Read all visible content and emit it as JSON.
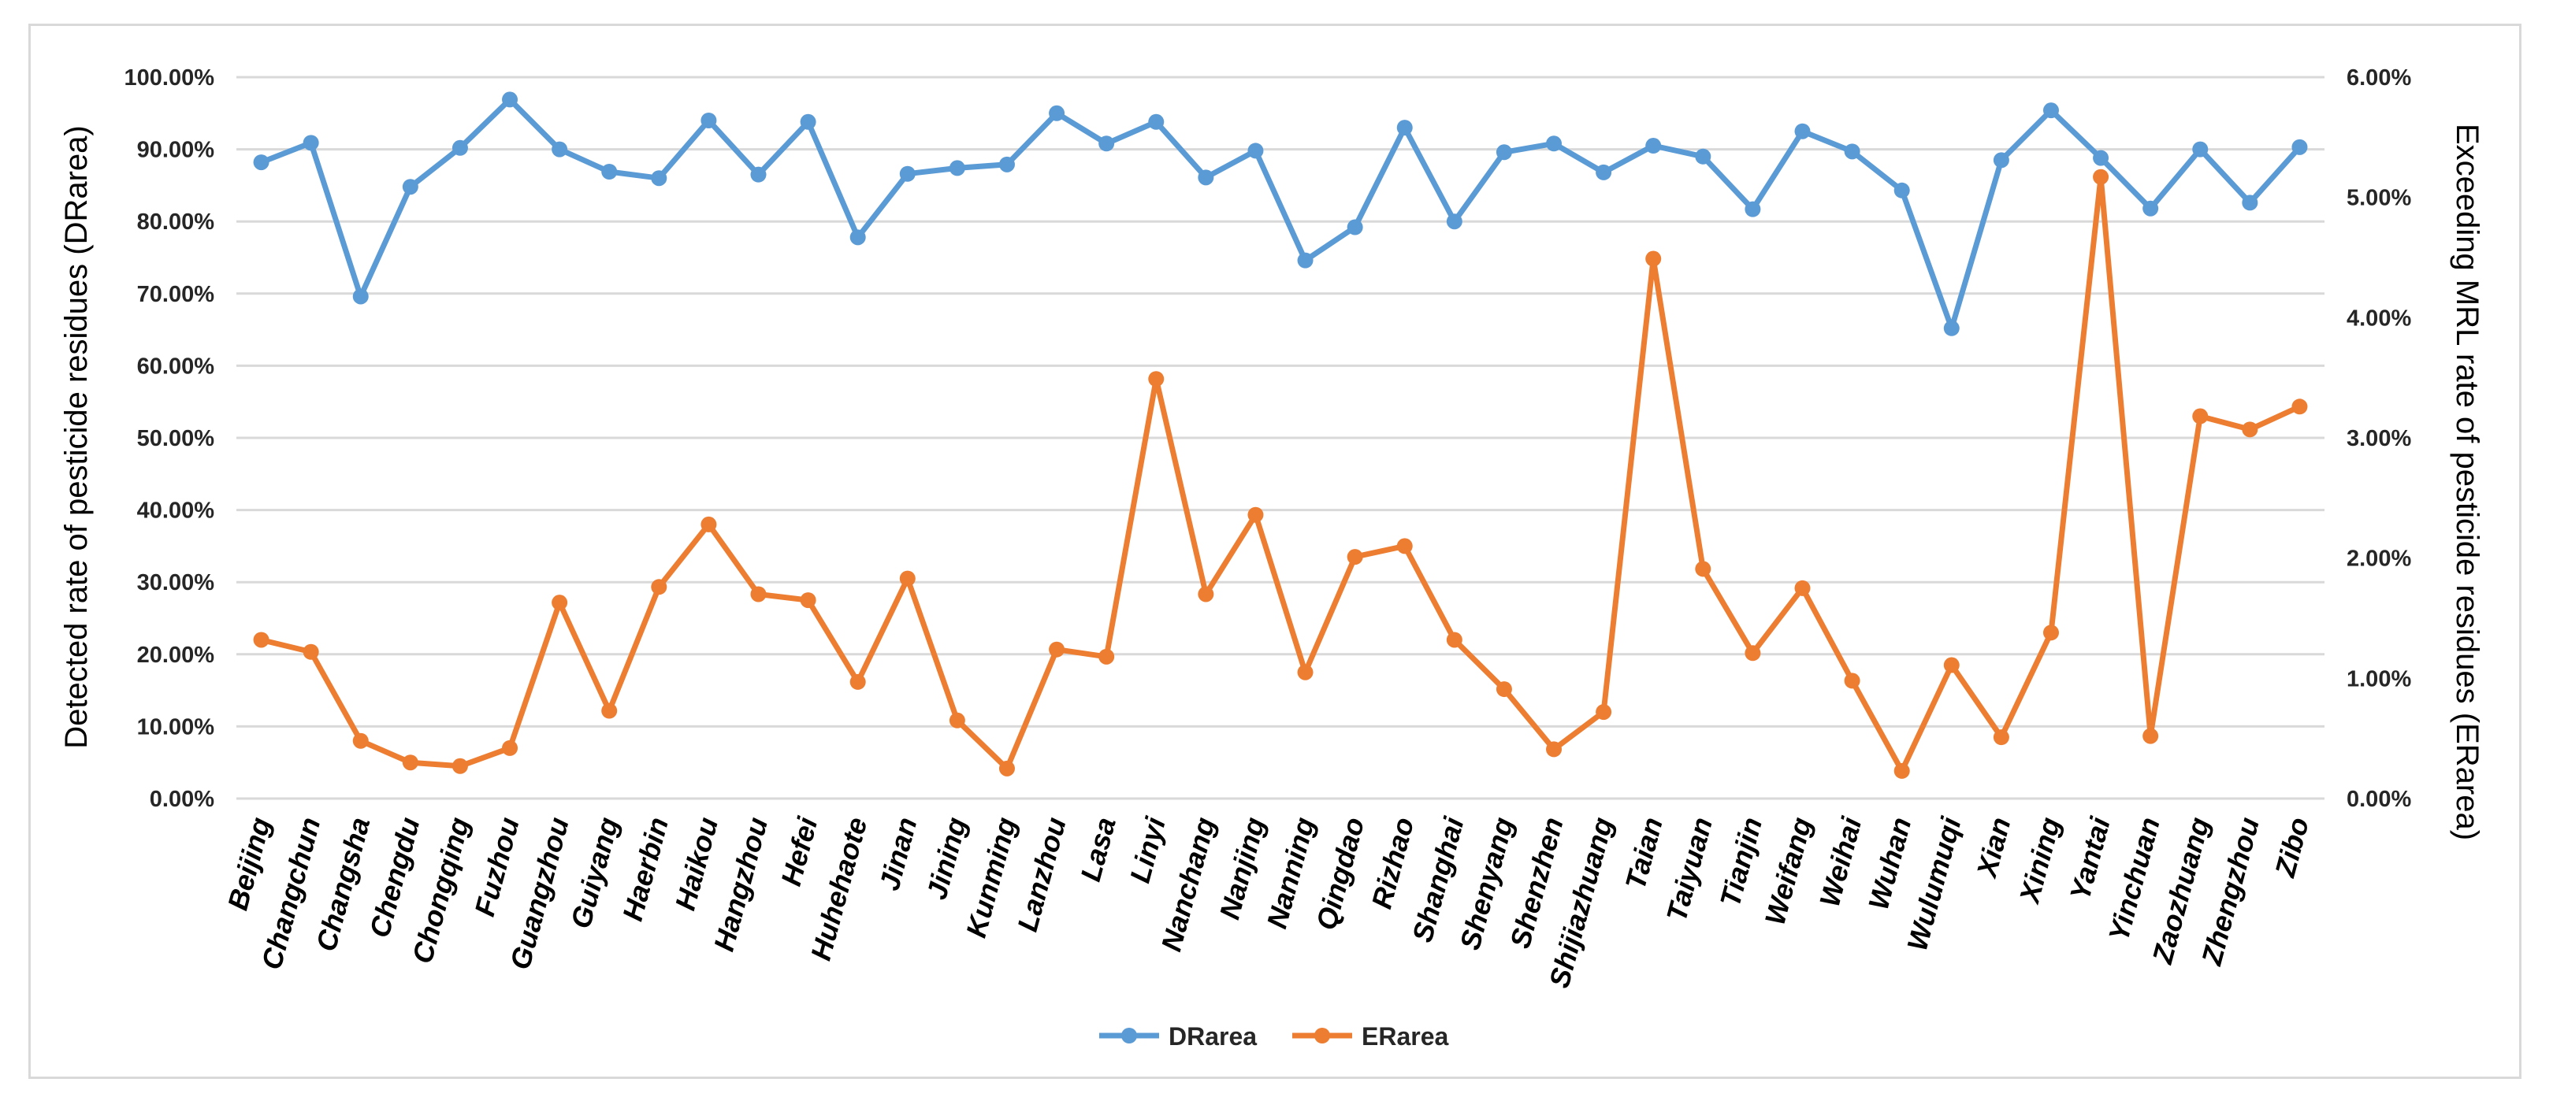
{
  "chart_data": {
    "type": "line",
    "categories": [
      "Beijing",
      "Changchun",
      "Changsha",
      "Chengdu",
      "Chongqing",
      "Fuzhou",
      "Guangzhou",
      "Guiyang",
      "Haerbin",
      "Haikou",
      "Hangzhou",
      "Hefei",
      "Huhehaote",
      "Jinan",
      "Jining",
      "Kunming",
      "Lanzhou",
      "Lasa",
      "Linyi",
      "Nanchang",
      "Nanjing",
      "Nanning",
      "Qingdao",
      "Rizhao",
      "Shanghai",
      "Shenyang",
      "Shenzhen",
      "Shijiazhuang",
      "Taian",
      "Taiyuan",
      "Tianjin",
      "Weifang",
      "Weihai",
      "Wuhan",
      "Wulumuqi",
      "Xian",
      "Xining",
      "Yantai",
      "Yinchuan",
      "Zaozhuang",
      "Zhengzhou",
      "Zibo"
    ],
    "series": [
      {
        "name": "DRarea",
        "axis": "left",
        "color": "#5b9bd5",
        "values": [
          88.2,
          90.9,
          69.6,
          84.8,
          90.2,
          96.9,
          90.0,
          86.9,
          86.0,
          94.0,
          86.5,
          93.8,
          77.8,
          86.6,
          87.4,
          87.9,
          95.0,
          90.8,
          93.8,
          86.1,
          89.8,
          74.6,
          79.2,
          93.0,
          80.0,
          89.6,
          90.8,
          86.8,
          90.5,
          89.0,
          81.7,
          92.5,
          89.7,
          84.3,
          65.2,
          88.5,
          95.4,
          88.8,
          81.8,
          90.0,
          82.6,
          90.3
        ]
      },
      {
        "name": "ERarea",
        "axis": "right",
        "color": "#ed7d31",
        "values": [
          1.32,
          1.22,
          0.48,
          0.3,
          0.27,
          0.42,
          1.63,
          0.73,
          1.76,
          2.28,
          1.7,
          1.65,
          0.97,
          1.83,
          0.65,
          0.25,
          1.24,
          1.18,
          3.49,
          1.7,
          2.36,
          1.05,
          2.01,
          2.1,
          1.32,
          0.91,
          0.41,
          0.72,
          4.49,
          1.91,
          1.21,
          1.75,
          0.98,
          0.23,
          1.11,
          0.51,
          1.38,
          5.17,
          0.52,
          3.18,
          3.07,
          3.26
        ]
      }
    ],
    "ylabel": "Detected rate of pesticide residues (DRarea)",
    "ylabel_right": "Exceeding MRL rate of pesticide residues (ERarea)",
    "xlabel": "",
    "title": "",
    "ylim": [
      0,
      100
    ],
    "ylim_right": [
      0,
      6
    ],
    "yticks": [
      "0.00%",
      "10.00%",
      "20.00%",
      "30.00%",
      "40.00%",
      "50.00%",
      "60.00%",
      "70.00%",
      "80.00%",
      "90.00%",
      "100.00%"
    ],
    "yticks_right": [
      "0.00%",
      "1.00%",
      "2.00%",
      "3.00%",
      "4.00%",
      "5.00%",
      "6.00%"
    ],
    "grid": true,
    "legend": "bottom-center"
  }
}
